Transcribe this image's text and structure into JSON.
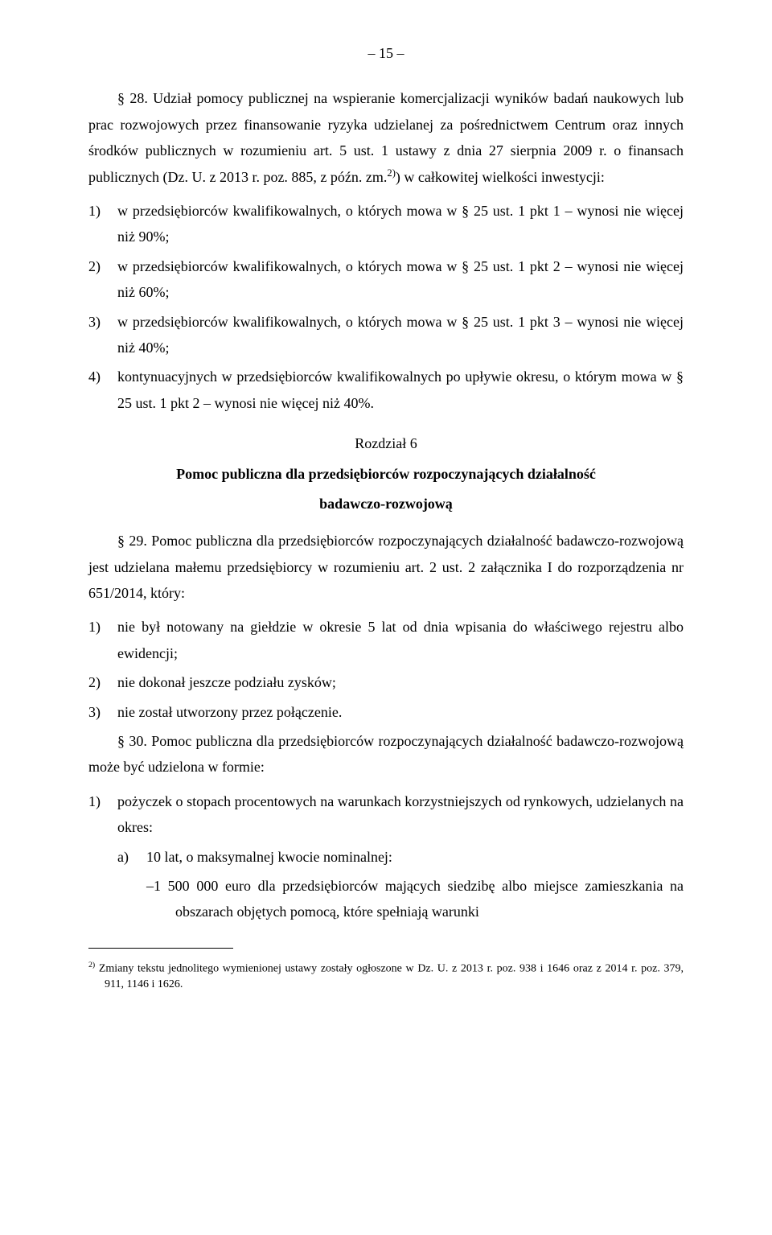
{
  "page_number": "– 15 –",
  "p28_lead": "§ 28. Udział pomocy publicznej na wspieranie komercjalizacji wyników badań naukowych lub prac rozwojowych przez finansowanie ryzyka udzielanej za pośrednictwem Centrum oraz innych środków publicznych w rozumieniu art. 5 ust. 1 ustawy z dnia 27 sierpnia 2009 r. o finansach publicznych (Dz. U. z 2013 r. poz. 885, z późn. zm.",
  "p28_sup": "2)",
  "p28_tail": ") w całkowitej wielkości inwestycji:",
  "p28_items": {
    "i1": "w przedsiębiorców kwalifikowalnych, o których mowa w § 25 ust. 1 pkt 1 – wynosi nie więcej niż 90%;",
    "i2": "w przedsiębiorców kwalifikowalnych, o których mowa w § 25 ust. 1 pkt 2 – wynosi nie więcej niż 60%;",
    "i3": "w przedsiębiorców kwalifikowalnych, o których mowa w § 25 ust. 1 pkt 3 – wynosi nie więcej niż 40%;",
    "i4": "kontynuacyjnych w przedsiębiorców kwalifikowalnych po upływie okresu, o którym mowa w § 25 ust. 1 pkt 2 – wynosi nie więcej niż 40%."
  },
  "chapter_label": "Rozdział 6",
  "chapter_title_1": "Pomoc publiczna dla przedsiębiorców rozpoczynających działalność",
  "chapter_title_2": "badawczo-rozwojową",
  "p29": "§ 29. Pomoc publiczna dla przedsiębiorców rozpoczynających działalność badawczo-rozwojową jest udzielana małemu przedsiębiorcy w rozumieniu art. 2 ust. 2 załącznika I do rozporządzenia nr 651/2014, który:",
  "p29_items": {
    "i1": "nie był notowany na giełdzie w okresie 5 lat od dnia wpisania do właściwego rejestru albo ewidencji;",
    "i2": "nie dokonał jeszcze podziału zysków;",
    "i3": "nie został utworzony przez połączenie."
  },
  "p30": "§ 30. Pomoc publiczna dla przedsiębiorców rozpoczynających działalność badawczo-rozwojową może być udzielona w formie:",
  "p30_items": {
    "i1": "pożyczek o stopach procentowych na warunkach korzystniejszych od rynkowych, udzielanych na okres:",
    "i1a": "10 lat, o maksymalnej kwocie nominalnej:",
    "i1a_dash": "1 500 000 euro dla przedsiębiorców mających siedzibę albo miejsce zamieszkania na obszarach objętych pomocą, które spełniają warunki"
  },
  "footnote_marker": "2)",
  "footnote_text": "Zmiany tekstu jednolitego wymienionej ustawy zostały ogłoszone w Dz. U. z 2013 r. poz. 938 i 1646 oraz z 2014 r. poz. 379, 911, 1146 i 1626.",
  "labels": {
    "n1": "1)",
    "n2": "2)",
    "n3": "3)",
    "n4": "4)",
    "a": "a)",
    "dash": "–"
  }
}
